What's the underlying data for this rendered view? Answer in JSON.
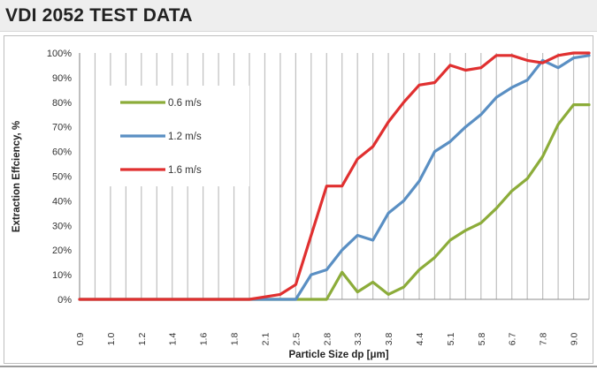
{
  "header": {
    "title": "VDI 2052 TEST DATA"
  },
  "colors": {
    "series_0_6": "#8cac3a",
    "series_1_2": "#5a8fc3",
    "series_1_6": "#e03030",
    "grid": "#bfbfbf",
    "title_bg": "#eeeeee"
  },
  "chart_data": {
    "type": "line",
    "title": "",
    "xlabel": "Particle Size dp [μm]",
    "ylabel": "Extraction Effciency, %",
    "x_tick_labels": [
      "0.9",
      "1.0",
      "1.2",
      "1.4",
      "1.6",
      "1.8",
      "2.1",
      "2.5",
      "2.8",
      "3.3",
      "3.8",
      "4.4",
      "5.1",
      "5.8",
      "6.7",
      "7.8",
      "9.0"
    ],
    "x": [
      "0.9",
      "0.95",
      "1.0",
      "1.1",
      "1.2",
      "1.3",
      "1.4",
      "1.5",
      "1.6",
      "1.7",
      "1.8",
      "1.95",
      "2.1",
      "2.3",
      "2.5",
      "2.65",
      "2.8",
      "3.05",
      "3.3",
      "3.55",
      "3.8",
      "4.1",
      "4.4",
      "4.75",
      "5.1",
      "5.45",
      "5.8",
      "6.25",
      "6.7",
      "7.25",
      "7.8",
      "8.4",
      "9.0",
      "9.5"
    ],
    "y_tick_labels": [
      "0%",
      "10%",
      "20%",
      "30%",
      "40%",
      "50%",
      "60%",
      "70%",
      "80%",
      "90%",
      "100%"
    ],
    "ylim": [
      0,
      100
    ],
    "grid": "vertical",
    "legend_position": "top-left inside",
    "series": [
      {
        "name": "0.6 m/s",
        "color": "#8cac3a",
        "values": [
          0,
          0,
          0,
          0,
          0,
          0,
          0,
          0,
          0,
          0,
          0,
          0,
          0,
          0,
          0,
          0,
          0,
          11,
          3,
          7,
          2,
          5,
          12,
          17,
          24,
          28,
          31,
          37,
          44,
          49,
          58,
          71,
          79,
          79
        ]
      },
      {
        "name": "1.2 m/s",
        "color": "#5a8fc3",
        "values": [
          0,
          0,
          0,
          0,
          0,
          0,
          0,
          0,
          0,
          0,
          0,
          0,
          0,
          0,
          0,
          10,
          12,
          20,
          26,
          24,
          35,
          40,
          48,
          60,
          64,
          70,
          75,
          82,
          86,
          89,
          97,
          94,
          98,
          99
        ]
      },
      {
        "name": "1.6 m/s",
        "color": "#e03030",
        "values": [
          0,
          0,
          0,
          0,
          0,
          0,
          0,
          0,
          0,
          0,
          0,
          0,
          1,
          2,
          6,
          26,
          46,
          46,
          57,
          62,
          72,
          80,
          87,
          88,
          95,
          93,
          94,
          99,
          99,
          97,
          96,
          99,
          100,
          100
        ]
      }
    ]
  }
}
